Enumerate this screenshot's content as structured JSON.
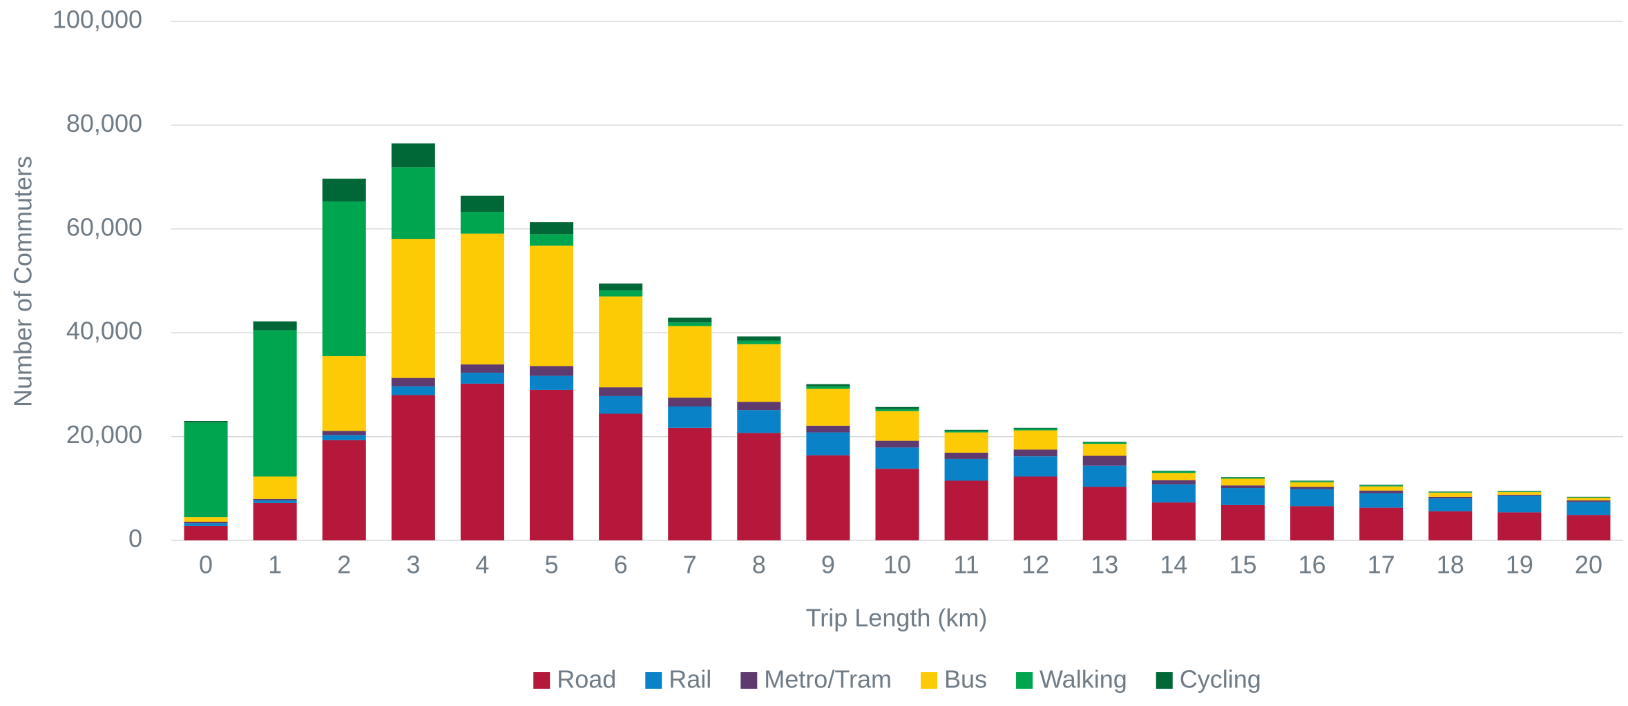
{
  "chart_data": {
    "type": "stacked_bar",
    "x_label": "Trip Length (km)",
    "y_label": "Number of Commuters",
    "categories": [
      "0",
      "1",
      "2",
      "3",
      "4",
      "5",
      "6",
      "7",
      "8",
      "9",
      "10",
      "11",
      "12",
      "13",
      "14",
      "15",
      "16",
      "17",
      "18",
      "19",
      "20"
    ],
    "series": [
      {
        "name": "Road",
        "color": "#b5183a",
        "values": [
          2800,
          7200,
          19300,
          28000,
          30200,
          29000,
          24400,
          21700,
          20700,
          16400,
          13800,
          11500,
          12300,
          10300,
          7300,
          6800,
          6600,
          6300,
          5600,
          5400,
          4900
        ]
      },
      {
        "name": "Rail",
        "color": "#0a82c8",
        "values": [
          500,
          500,
          1000,
          1700,
          2100,
          2700,
          3400,
          4100,
          4400,
          4400,
          4100,
          4200,
          3900,
          4100,
          3500,
          3300,
          3300,
          2800,
          2500,
          3200,
          2500
        ]
      },
      {
        "name": "Metro/Tram",
        "color": "#5e3a6e",
        "values": [
          300,
          300,
          800,
          1600,
          1600,
          1900,
          1700,
          1700,
          1600,
          1300,
          1300,
          1200,
          1300,
          1900,
          800,
          500,
          400,
          500,
          300,
          200,
          300
        ]
      },
      {
        "name": "Bus",
        "color": "#fdcb05",
        "values": [
          900,
          4300,
          14400,
          26800,
          25200,
          23200,
          17500,
          13800,
          11100,
          7100,
          5700,
          3900,
          3700,
          2300,
          1400,
          1300,
          900,
          800,
          800,
          500,
          500
        ]
      },
      {
        "name": "Walking",
        "color": "#00a550",
        "values": [
          18200,
          28200,
          29800,
          13800,
          4200,
          2200,
          1200,
          700,
          700,
          500,
          400,
          300,
          300,
          300,
          300,
          200,
          200,
          200,
          100,
          100,
          100
        ]
      },
      {
        "name": "Cycling",
        "color": "#006837",
        "values": [
          300,
          1700,
          4400,
          4600,
          3100,
          2300,
          1300,
          900,
          800,
          400,
          400,
          200,
          200,
          100,
          100,
          100,
          100,
          100,
          100,
          100,
          100
        ]
      }
    ],
    "ylim": [
      0,
      100000
    ],
    "yticks": [
      0,
      {
        "value": 20000,
        "label": "20,000"
      },
      {
        "value": 40000,
        "label": "40,000"
      },
      {
        "value": 60000,
        "label": "60,000"
      },
      {
        "value": 80000,
        "label": "80,000"
      },
      {
        "value": 100000,
        "label": "100,000"
      }
    ],
    "grid": true,
    "legend": "bottom"
  }
}
